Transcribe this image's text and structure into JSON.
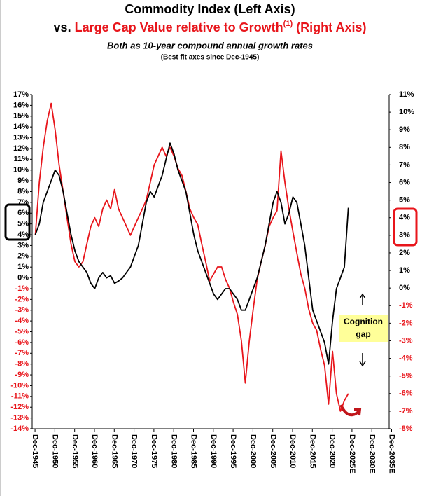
{
  "chart_data": {
    "type": "line",
    "title": {
      "line1": "Commodity Index (Left Axis)",
      "line2_prefix": "vs. ",
      "line2_main": "Large Cap Value relative to Growth",
      "line2_sup": "(1)",
      "line2_suffix": " (Right Axis)"
    },
    "subtitle": "Both as 10-year compound annual growth rates",
    "note": "(Best fit axes since Dec-1945)",
    "annotation": [
      "Cognition",
      "gap"
    ],
    "x": [
      1946,
      1947,
      1948,
      1949,
      1950,
      1951,
      1952,
      1953,
      1954,
      1955,
      1956,
      1957,
      1958,
      1959,
      1960,
      1961,
      1962,
      1963,
      1964,
      1965,
      1966,
      1967,
      1968,
      1969,
      1970,
      1971,
      1972,
      1973,
      1974,
      1975,
      1976,
      1977,
      1978,
      1979,
      1980,
      1981,
      1982,
      1983,
      1984,
      1985,
      1986,
      1987,
      1988,
      1989,
      1990,
      1991,
      1992,
      1993,
      1994,
      1995,
      1996,
      1997,
      1998,
      1999,
      2000,
      2001,
      2002,
      2003,
      2004,
      2005,
      2006,
      2007,
      2008,
      2009,
      2010,
      2011,
      2012,
      2013,
      2014,
      2015,
      2016,
      2017,
      2018,
      2019,
      2020,
      2021,
      2022,
      2023,
      2024,
      2025
    ],
    "series": [
      {
        "name": "Commodity Index",
        "color": "#000000",
        "axis": "y",
        "values": [
          4,
          5,
          7,
          8,
          9,
          10,
          9.5,
          8,
          6,
          4,
          2.5,
          1.5,
          1,
          0.5,
          -0.5,
          -1,
          0,
          0.5,
          0,
          0.2,
          -0.5,
          -0.3,
          0,
          0.5,
          1,
          2,
          3,
          5,
          7,
          8,
          7.5,
          8.5,
          9.5,
          11,
          12.5,
          11.5,
          10,
          9,
          8,
          6,
          4,
          2.5,
          1.5,
          0.5,
          -0.5,
          -1.5,
          -2,
          -1.5,
          -1,
          -1,
          -1.5,
          -2,
          -3,
          -3,
          -2,
          -1,
          0,
          1.5,
          3,
          5,
          7,
          8,
          7,
          5,
          6,
          7.5,
          7,
          5,
          3,
          0,
          -3,
          -4,
          -5,
          -6,
          -8,
          -4,
          -1,
          0,
          1,
          6.5
        ]
      },
      {
        "name": "Large Cap Value relative to Growth",
        "color": "#e8151b",
        "axis": "y2",
        "values": [
          3,
          6,
          8,
          9.5,
          10.5,
          9,
          7,
          5.5,
          4,
          2.5,
          1.5,
          1.2,
          1.5,
          2.5,
          3.5,
          4,
          3.5,
          4.5,
          5,
          4.5,
          5.6,
          4.5,
          4,
          3.5,
          3,
          3.5,
          4,
          4.5,
          5,
          6,
          7,
          7.5,
          8,
          7.5,
          8,
          7.5,
          6.8,
          6.4,
          5.5,
          4.5,
          4,
          3.6,
          2.5,
          1.5,
          0.4,
          0.8,
          1.2,
          1.2,
          0.5,
          0,
          -0.8,
          -1.5,
          -3,
          -5.4,
          -3,
          -1.2,
          0.5,
          1.5,
          2.4,
          3.5,
          4,
          4.4,
          7.8,
          6,
          4.5,
          3.2,
          2,
          0.8,
          0,
          -1.2,
          -2,
          -2.4,
          -3.5,
          -4.4,
          -6.6,
          -3.6,
          -6,
          -7,
          -6.4,
          -6
        ]
      }
    ],
    "xlim": [
      1945.2,
      2035.3
    ],
    "xticks": [
      {
        "value": 1945.92,
        "label": "Dec-1945"
      },
      {
        "value": 1950.92,
        "label": "Dec-1950"
      },
      {
        "value": 1955.92,
        "label": "Dec-1955"
      },
      {
        "value": 1960.92,
        "label": "Dec-1960"
      },
      {
        "value": 1965.92,
        "label": "Dec-1965"
      },
      {
        "value": 1970.92,
        "label": "Dec-1970"
      },
      {
        "value": 1975.92,
        "label": "Dec-1975"
      },
      {
        "value": 1980.92,
        "label": "Dec-1980"
      },
      {
        "value": 1985.92,
        "label": "Dec-1985"
      },
      {
        "value": 1990.92,
        "label": "Dec-1990"
      },
      {
        "value": 1995.92,
        "label": "Dec-1995"
      },
      {
        "value": 2000.92,
        "label": "Dec-2000"
      },
      {
        "value": 2005.92,
        "label": "Dec-2005"
      },
      {
        "value": 2010.92,
        "label": "Dec-2010"
      },
      {
        "value": 2015.92,
        "label": "Dec-2015"
      },
      {
        "value": 2020.92,
        "label": "Dec-2020"
      },
      {
        "value": 2025.92,
        "label": "Dec-2025E"
      },
      {
        "value": 2030.92,
        "label": "Dec-2030E"
      },
      {
        "value": 2035.92,
        "label": "Dec-2035E"
      }
    ],
    "ylim": [
      -14,
      17
    ],
    "yticks": [
      {
        "value": 17,
        "label": "17%"
      },
      {
        "value": 16,
        "label": "16%"
      },
      {
        "value": 15,
        "label": "15%"
      },
      {
        "value": 14,
        "label": "14%"
      },
      {
        "value": 13,
        "label": "13%"
      },
      {
        "value": 12,
        "label": "12%"
      },
      {
        "value": 11,
        "label": "11%"
      },
      {
        "value": 10,
        "label": "10%"
      },
      {
        "value": 9,
        "label": "9%"
      },
      {
        "value": 8,
        "label": "8%"
      },
      {
        "value": 7,
        "label": "7%"
      },
      {
        "value": 6,
        "label": "6%"
      },
      {
        "value": 5,
        "label": "5%"
      },
      {
        "value": 4,
        "label": "4%"
      },
      {
        "value": 3,
        "label": "3%"
      },
      {
        "value": 2,
        "label": "2%"
      },
      {
        "value": 1,
        "label": "1%"
      },
      {
        "value": 0,
        "label": "0%"
      },
      {
        "value": -1,
        "label": "-1%"
      },
      {
        "value": -2,
        "label": "-2%"
      },
      {
        "value": -3,
        "label": "-3%"
      },
      {
        "value": -4,
        "label": "-4%"
      },
      {
        "value": -5,
        "label": "-5%"
      },
      {
        "value": -6,
        "label": "-6%"
      },
      {
        "value": -7,
        "label": "-7%"
      },
      {
        "value": -8,
        "label": "-8%"
      },
      {
        "value": -9,
        "label": "-9%"
      },
      {
        "value": -10,
        "label": "-10%"
      },
      {
        "value": -11,
        "label": "-11%"
      },
      {
        "value": -12,
        "label": "-12%"
      },
      {
        "value": -13,
        "label": "-13%"
      },
      {
        "value": -14,
        "label": "-14%"
      }
    ],
    "y2lim": [
      -8,
      11
    ],
    "y2ticks": [
      {
        "value": 11,
        "label": "11%"
      },
      {
        "value": 10,
        "label": "10%"
      },
      {
        "value": 9,
        "label": "9%"
      },
      {
        "value": 8,
        "label": "8%"
      },
      {
        "value": 7,
        "label": "7%"
      },
      {
        "value": 6,
        "label": "6%"
      },
      {
        "value": 5,
        "label": "5%"
      },
      {
        "value": 4,
        "label": "4%"
      },
      {
        "value": 3,
        "label": "3%"
      },
      {
        "value": 2,
        "label": "2%"
      },
      {
        "value": 1,
        "label": "1%"
      },
      {
        "value": 0,
        "label": "0%"
      },
      {
        "value": -1,
        "label": "-1%"
      },
      {
        "value": -2,
        "label": "-2%"
      },
      {
        "value": -3,
        "label": "-3%"
      },
      {
        "value": -4,
        "label": "-4%"
      },
      {
        "value": -5,
        "label": "-5%"
      },
      {
        "value": -6,
        "label": "-6%"
      },
      {
        "value": -7,
        "label": "-7%"
      },
      {
        "value": -8,
        "label": "-8%"
      }
    ],
    "grid": false
  }
}
